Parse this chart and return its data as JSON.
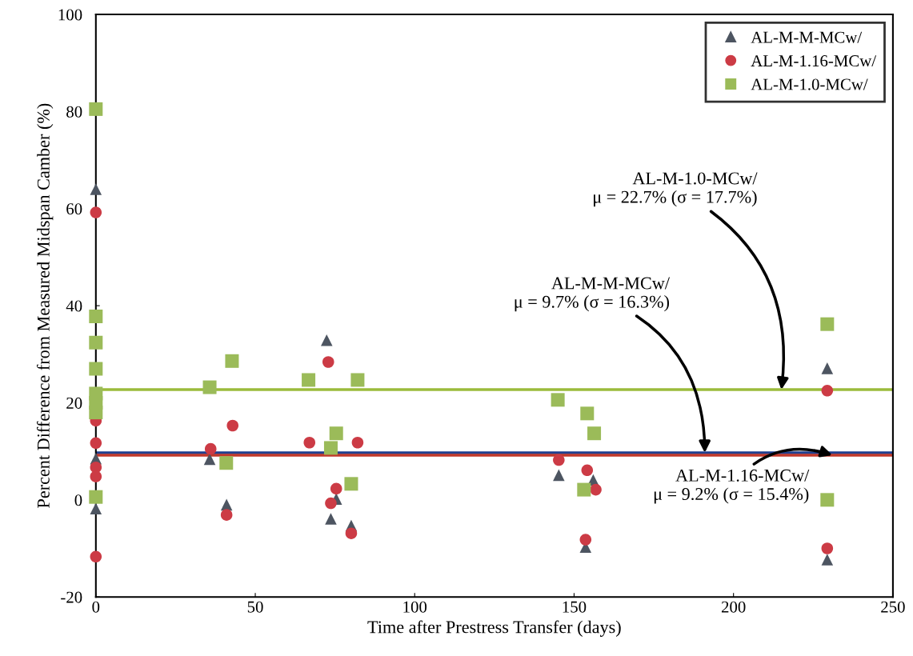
{
  "chart_data": {
    "type": "scatter",
    "xlabel": "Time after Prestress Transfer (days)",
    "ylabel": "Percent Difference from Measured Midspan Camber (%)",
    "xlim": [
      0,
      250
    ],
    "xticks": [
      0,
      50,
      100,
      150,
      200,
      250
    ],
    "ylim": [
      -20,
      100
    ],
    "yticks": [
      -20,
      0,
      20,
      40,
      60,
      80,
      100
    ],
    "grid": false,
    "legend": "top right",
    "series": [
      {
        "name": "AL-M-M-MCw/",
        "color": "#4d5561",
        "marker": "triangle",
        "x": [
          0,
          0,
          0,
          35.7,
          41,
          72.4,
          73.7,
          75.4,
          80.1,
          145.2,
          156,
          153.6,
          229.4,
          229.4
        ],
        "values": [
          64,
          8.5,
          -1.8,
          8.4,
          -1.0,
          32.9,
          -3.9,
          0.2,
          -5.3,
          5.1,
          4.1,
          -9.7,
          27.1,
          -12.3
        ]
      },
      {
        "name": "AL-M-1.16-MCw/",
        "color": "#cc3b45",
        "marker": "circle",
        "x": [
          0,
          0,
          0,
          0,
          0,
          0,
          36,
          42.9,
          41,
          72.9,
          67,
          82.1,
          75.4,
          73.7,
          80.1,
          145.2,
          154.1,
          156.8,
          153.6,
          229.4,
          229.4
        ],
        "values": [
          59.2,
          16.3,
          11.7,
          6.7,
          4.8,
          -11.7,
          10.5,
          15.3,
          -3.1,
          28.4,
          11.8,
          11.8,
          2.3,
          -0.7,
          -6.9,
          8.2,
          6.1,
          2.1,
          -8.2,
          22.5,
          -10
        ]
      },
      {
        "name": "AL-M-1.0-MCw/",
        "color": "#9bbb59",
        "marker": "square",
        "x": [
          0,
          0,
          0,
          0,
          0,
          0,
          0,
          0,
          35.7,
          42.7,
          40.9,
          66.7,
          82.1,
          75.4,
          73.7,
          80.1,
          144.9,
          154.1,
          156.3,
          153.1,
          229.4,
          229.4
        ],
        "values": [
          80.5,
          37.8,
          32.4,
          27,
          21.9,
          20,
          18,
          0.6,
          23.2,
          28.6,
          7.6,
          24.7,
          24.7,
          13.7,
          10.7,
          3.3,
          20.6,
          17.8,
          13.7,
          2.1,
          36.2,
          0
        ]
      }
    ],
    "ref_lines": [
      {
        "axis": "y",
        "value": 22.7,
        "color": "#9bbb3b"
      },
      {
        "axis": "y",
        "value": 9.7,
        "color": "#1f3f8f"
      },
      {
        "axis": "y",
        "value": 9.2,
        "color": "#c0392b"
      }
    ],
    "annotations": [
      {
        "text": "AL-M-1.0-MCw/\nμ = 22.7% (σ = 17.7%)",
        "x": 215,
        "y": 22.7
      },
      {
        "text": "AL-M-M-MCw/\nμ = 9.7% (σ = 16.3%)",
        "x": 191,
        "y": 9.7
      },
      {
        "text": "AL-M-1.16-MCw/\nμ = 9.2% (σ = 15.4%)",
        "x": 231,
        "y": 9.2
      }
    ]
  }
}
